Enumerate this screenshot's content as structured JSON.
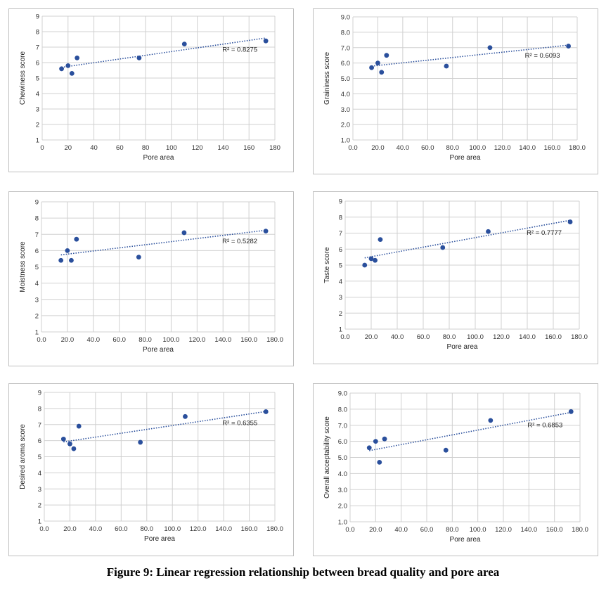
{
  "figure_caption": "Figure 9: Linear regression relationship between bread quality and pore area",
  "chart_data": [
    {
      "type": "scatter",
      "xlabel": "Pore area",
      "ylabel": "Chewiness score",
      "xlim": [
        0,
        180
      ],
      "xstep": 20,
      "ylim": [
        1,
        9
      ],
      "ystep": 1,
      "xtick_decimals": 0,
      "ytick_decimals": 0,
      "points": [
        [
          15,
          5.6
        ],
        [
          20,
          5.8
        ],
        [
          23,
          5.3
        ],
        [
          27,
          6.3
        ],
        [
          75,
          6.3
        ],
        [
          110,
          7.2
        ],
        [
          173,
          7.4
        ]
      ],
      "trendline": {
        "style": "dotted",
        "r2_label": "R² = 0.8275"
      },
      "marker_color": "#2a4f9c",
      "trend_color": "#2a4f9c"
    },
    {
      "type": "scatter",
      "xlabel": "Pore area",
      "ylabel": "Graininess score",
      "xlim": [
        0,
        180
      ],
      "xstep": 20,
      "ylim": [
        1,
        9
      ],
      "ystep": 1,
      "xtick_decimals": 1,
      "ytick_decimals": 1,
      "points": [
        [
          15,
          5.7
        ],
        [
          20,
          6.0
        ],
        [
          23,
          5.4
        ],
        [
          27,
          6.5
        ],
        [
          75,
          5.8
        ],
        [
          110,
          7.0
        ],
        [
          173,
          7.1
        ]
      ],
      "trendline": {
        "style": "dotted",
        "r2_label": "R² = 0.6093"
      },
      "marker_color": "#2a4f9c",
      "trend_color": "#2a4f9c"
    },
    {
      "type": "scatter",
      "xlabel": "Pore area",
      "ylabel": "Moistness score",
      "xlim": [
        0,
        180
      ],
      "xstep": 20,
      "ylim": [
        1,
        9
      ],
      "ystep": 1,
      "xtick_decimals": 1,
      "ytick_decimals": 0,
      "points": [
        [
          15,
          5.4
        ],
        [
          20,
          6.0
        ],
        [
          23,
          5.4
        ],
        [
          27,
          6.7
        ],
        [
          75,
          5.6
        ],
        [
          110,
          7.1
        ],
        [
          173,
          7.2
        ]
      ],
      "trendline": {
        "style": "dotted",
        "r2_label": "R² = 0.5282"
      },
      "marker_color": "#2a4f9c",
      "trend_color": "#2a4f9c"
    },
    {
      "type": "scatter",
      "xlabel": "Pore area",
      "ylabel": "Taste score",
      "xlim": [
        0,
        180
      ],
      "xstep": 20,
      "ylim": [
        1,
        9
      ],
      "ystep": 1,
      "xtick_decimals": 1,
      "ytick_decimals": 0,
      "points": [
        [
          15,
          5.0
        ],
        [
          20,
          5.4
        ],
        [
          23,
          5.3
        ],
        [
          27,
          6.6
        ],
        [
          75,
          6.1
        ],
        [
          110,
          7.1
        ],
        [
          173,
          7.7
        ]
      ],
      "trendline": {
        "style": "dotted",
        "r2_label": "R² = 0.7777"
      },
      "marker_color": "#2a4f9c",
      "trend_color": "#2a4f9c"
    },
    {
      "type": "scatter",
      "xlabel": "Pore area",
      "ylabel": "Desired aroma score",
      "xlim": [
        0,
        180
      ],
      "xstep": 20,
      "ylim": [
        1,
        9
      ],
      "ystep": 1,
      "xtick_decimals": 1,
      "ytick_decimals": 0,
      "points": [
        [
          15,
          6.1
        ],
        [
          20,
          5.8
        ],
        [
          23,
          5.5
        ],
        [
          27,
          6.9
        ],
        [
          75,
          5.9
        ],
        [
          110,
          7.5
        ],
        [
          173,
          7.8
        ]
      ],
      "trendline": {
        "style": "dotted",
        "r2_label": "R² = 0.6355"
      },
      "marker_color": "#2a4f9c",
      "trend_color": "#2a4f9c"
    },
    {
      "type": "scatter",
      "xlabel": "Pore area",
      "ylabel": "Overall acceptability score",
      "xlim": [
        0,
        180
      ],
      "xstep": 20,
      "ylim": [
        1,
        9
      ],
      "ystep": 1,
      "xtick_decimals": 1,
      "ytick_decimals": 1,
      "points": [
        [
          15,
          5.6
        ],
        [
          20,
          6.0
        ],
        [
          23,
          4.7
        ],
        [
          27,
          6.15
        ],
        [
          75,
          5.45
        ],
        [
          110,
          7.3
        ],
        [
          173,
          7.85
        ]
      ],
      "trendline": {
        "style": "dotted",
        "r2_label": "R² = 0.6853"
      },
      "marker_color": "#2a4f9c",
      "trend_color": "#2a4f9c"
    }
  ]
}
